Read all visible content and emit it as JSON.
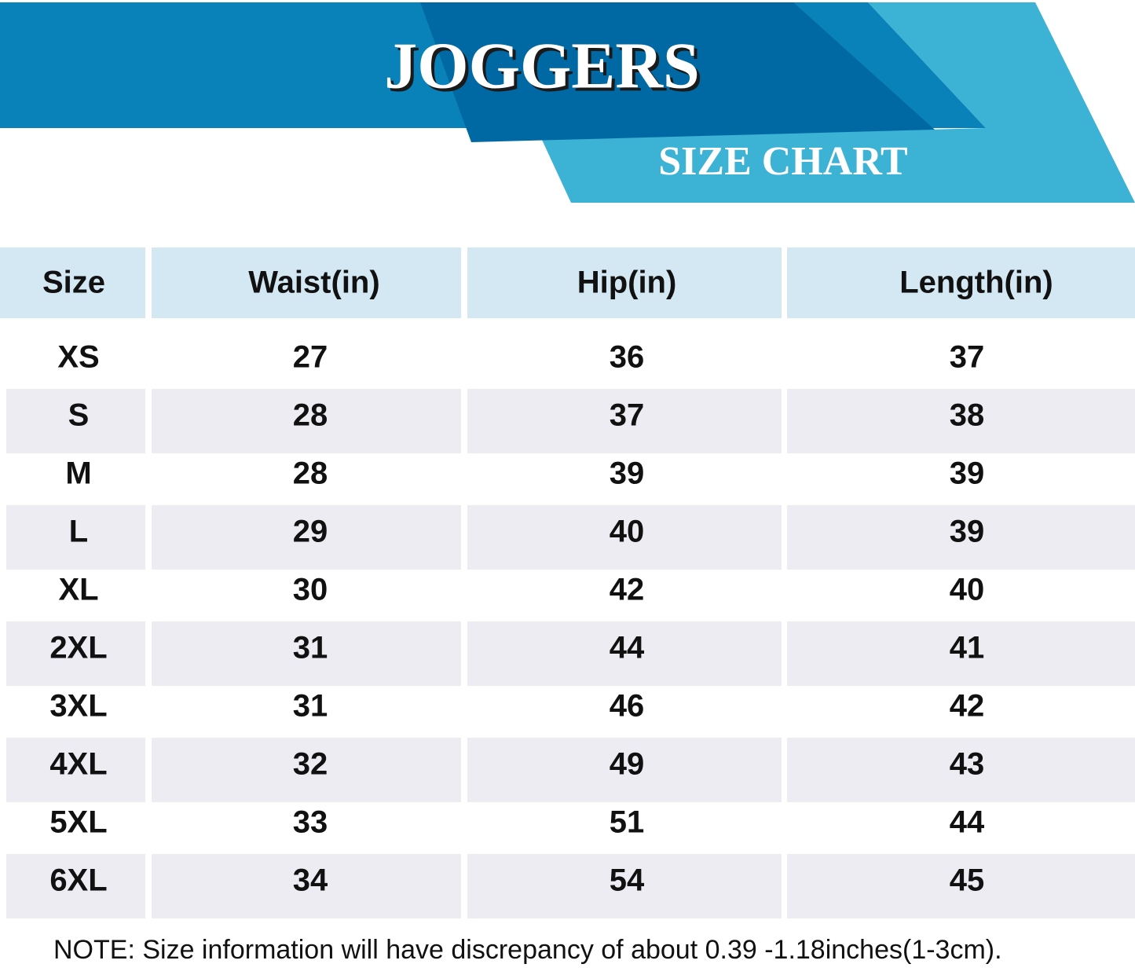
{
  "header": {
    "title": "JOGGERS",
    "subtitle": "SIZE CHART"
  },
  "table": {
    "columns": [
      "Size",
      "Waist(in)",
      "Hip(in)",
      "Length(in)"
    ],
    "rows": [
      [
        "XS",
        27,
        36,
        37
      ],
      [
        "S",
        28,
        37,
        38
      ],
      [
        "M",
        28,
        39,
        39
      ],
      [
        "L",
        29,
        40,
        39
      ],
      [
        "XL",
        30,
        42,
        40
      ],
      [
        "2XL",
        31,
        44,
        41
      ],
      [
        "3XL",
        31,
        46,
        42
      ],
      [
        "4XL",
        32,
        49,
        43
      ],
      [
        "5XL",
        33,
        51,
        44
      ],
      [
        "6XL",
        34,
        54,
        45
      ]
    ]
  },
  "note": "NOTE: Size information will have discrepancy of about 0.39 -1.18inches(1-3cm)."
}
